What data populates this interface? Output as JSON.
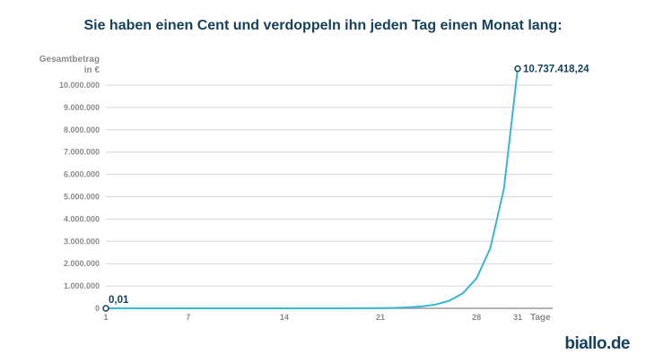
{
  "colors": {
    "title": "#16425b",
    "line": "#39b5d6",
    "grid": "#d6d6d6",
    "axis_text": "#8a8a8a",
    "axis_line": "#9a9a9a",
    "brand": "#16425b"
  },
  "brand": {
    "name": "biallo.de"
  },
  "chart_data": {
    "type": "line",
    "title": "Sie haben einen Cent und verdoppeln ihn jeden Tag einen Monat lang:",
    "xlabel": "Tage",
    "ylabel_line1": "Gesamtbetrag",
    "ylabel_line2": "in €",
    "xlim": [
      1,
      31
    ],
    "ylim": [
      0,
      10000000
    ],
    "grid": true,
    "x_ticks": [
      1,
      7,
      14,
      21,
      28,
      31
    ],
    "y_ticks": [
      0,
      1000000,
      2000000,
      3000000,
      4000000,
      5000000,
      6000000,
      7000000,
      8000000,
      9000000,
      10000000
    ],
    "y_tick_labels": [
      "0",
      "1.000.000",
      "2.000.000",
      "3.000.000",
      "4.000.000",
      "5.000.000",
      "6.000.000",
      "7.000.000",
      "8.000.000",
      "9.000.000",
      "10.000.000"
    ],
    "series": [
      {
        "x": [
          1,
          2,
          3,
          4,
          5,
          6,
          7,
          8,
          9,
          10,
          11,
          12,
          13,
          14,
          15,
          16,
          17,
          18,
          19,
          20,
          21,
          22,
          23,
          24,
          25,
          26,
          27,
          28,
          29,
          30,
          31
        ],
        "values": [
          0.01,
          0.02,
          0.04,
          0.08,
          0.16,
          0.32,
          0.64,
          1.28,
          2.56,
          5.12,
          10.24,
          20.48,
          40.96,
          81.92,
          163.84,
          327.68,
          655.36,
          1310.72,
          2621.44,
          5242.88,
          10485.76,
          20971.52,
          41943.04,
          83886.08,
          167772.16,
          335544.32,
          671088.64,
          1342177.28,
          2684354.56,
          5368709.12,
          10737418.24
        ]
      }
    ],
    "annotations": [
      {
        "x": 1,
        "y": 0.01,
        "text": "0,01"
      },
      {
        "x": 31,
        "y": 10737418.24,
        "text": "10.737.418,24"
      }
    ]
  }
}
